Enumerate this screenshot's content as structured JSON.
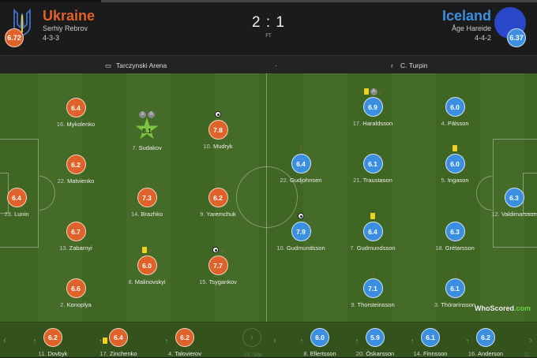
{
  "match": {
    "score": "2 : 1",
    "status": "FT",
    "venue": "Tarczynski Arena",
    "referee": "C. Turpin",
    "separator": "·"
  },
  "home": {
    "name": "Ukraine",
    "manager": "Serhiy Rebrov",
    "formation": "4-3-3",
    "rating": "6.72",
    "color": "#e0622b",
    "players": [
      {
        "num": "23.",
        "name": "Lunin",
        "rating": "6.4",
        "events": []
      },
      {
        "num": "16.",
        "name": "Mykolenko",
        "rating": "6.4",
        "events": []
      },
      {
        "num": "22.",
        "name": "Matvienko",
        "rating": "6.2",
        "events": []
      },
      {
        "num": "13.",
        "name": "Zabarnyi",
        "rating": "6.7",
        "events": []
      },
      {
        "num": "2.",
        "name": "Konoplya",
        "rating": "6.6",
        "events": []
      },
      {
        "num": "7.",
        "name": "Sudakov",
        "rating": "8.1",
        "events": [
          "assist",
          "assist"
        ],
        "motm": true
      },
      {
        "num": "14.",
        "name": "Brazhko",
        "rating": "7.3",
        "events": []
      },
      {
        "num": "8.",
        "name": "Malinovskyi",
        "rating": "6.0",
        "events": [
          "yellow",
          "sub-off"
        ]
      },
      {
        "num": "10.",
        "name": "Mudryk",
        "rating": "7.8",
        "events": [
          "goal"
        ]
      },
      {
        "num": "9.",
        "name": "Yaremchuk",
        "rating": "6.2",
        "events": [
          "sub-off"
        ]
      },
      {
        "num": "15.",
        "name": "Tsygankov",
        "rating": "7.7",
        "events": [
          "goal",
          "sub-off"
        ]
      }
    ],
    "subs": [
      {
        "num": "11.",
        "name": "Dovbyk",
        "rating": "6.2",
        "events": [
          "sub-on"
        ]
      },
      {
        "num": "17.",
        "name": "Zinchenko",
        "rating": "6.4",
        "events": [
          "sub-on",
          "yellow"
        ]
      },
      {
        "num": "4.",
        "name": "Talovierov",
        "rating": "6.2",
        "events": [
          "sub-on"
        ]
      },
      {
        "num": "18.",
        "name": "Var",
        "rating": "",
        "events": []
      }
    ]
  },
  "away": {
    "name": "Iceland",
    "manager": "Åge Hareide",
    "formation": "4-4-2",
    "rating": "6.37",
    "color": "#3b8ee0",
    "players": [
      {
        "num": "17.",
        "name": "Haraldsson",
        "rating": "6.9",
        "events": [
          "yellow",
          "assist",
          "sub-off"
        ]
      },
      {
        "num": "4.",
        "name": "Pálsson",
        "rating": "6.0",
        "events": []
      },
      {
        "num": "22.",
        "name": "Gudjohnsen",
        "rating": "6.4",
        "events": [
          "sub-off"
        ]
      },
      {
        "num": "21.",
        "name": "Traustason",
        "rating": "6.1",
        "events": []
      },
      {
        "num": "5.",
        "name": "Ingason",
        "rating": "6.0",
        "events": [
          "yellow"
        ]
      },
      {
        "num": "12.",
        "name": "Valdimarsson",
        "rating": "6.3",
        "events": []
      },
      {
        "num": "10.",
        "name": "Gudmundsson",
        "rating": "7.9",
        "events": [
          "goal"
        ]
      },
      {
        "num": "7.",
        "name": "Gudmundsson",
        "rating": "6.4",
        "events": [
          "yellow"
        ]
      },
      {
        "num": "18.",
        "name": "Grétarsson",
        "rating": "6.3",
        "events": []
      },
      {
        "num": "9.",
        "name": "Thorsteinsson",
        "rating": "7.1",
        "events": [
          "sub-off"
        ]
      },
      {
        "num": "3.",
        "name": "Thórarinsson",
        "rating": "6.1",
        "events": [
          "sub-off"
        ]
      }
    ],
    "subs": [
      {
        "num": "8.",
        "name": "Ellertsson",
        "rating": "6.0",
        "events": [
          "sub-on"
        ]
      },
      {
        "num": "20.",
        "name": "Óskarsson",
        "rating": "5.9",
        "events": [
          "sub-on"
        ]
      },
      {
        "num": "14.",
        "name": "Finnsson",
        "rating": "6.1",
        "events": [
          "sub-on"
        ]
      },
      {
        "num": "16.",
        "name": "Anderson",
        "rating": "6.2",
        "events": [
          "sub-on"
        ]
      },
      {
        "num": "11.",
        "name": "",
        "rating": "",
        "events": []
      }
    ]
  },
  "branding": {
    "logo_main": "WhoScored",
    "logo_suffix": ".com"
  },
  "icons": {
    "assist": "assist-icon",
    "goal": "ball-icon",
    "yellow": "yellow-card-icon",
    "sub-off": "sub-off-arrow-icon",
    "sub-on": "sub-on-arrow-icon",
    "venue": "stadium-icon",
    "referee": "whistle-icon"
  }
}
